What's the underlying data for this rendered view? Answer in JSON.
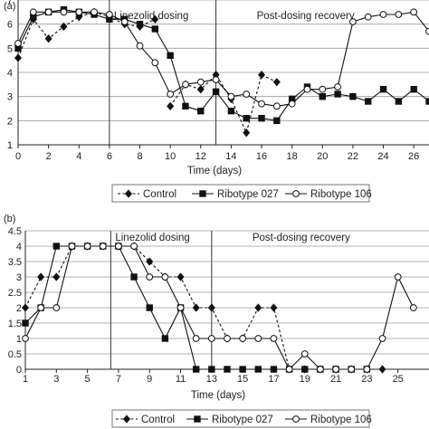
{
  "figure": {
    "panels": [
      "(a)",
      "(b)"
    ]
  },
  "chart_data": [
    {
      "type": "line",
      "panel_label": "",
      "xlabel": "Time (days)",
      "ylabel": "",
      "xlim": [
        0,
        27
      ],
      "ylim": [
        1,
        7
      ],
      "xticks": [
        0,
        2,
        4,
        6,
        8,
        10,
        12,
        14,
        16,
        18,
        20,
        22,
        24,
        26
      ],
      "yticks": [
        1,
        2,
        3,
        4,
        5,
        6,
        7
      ],
      "grid": "horizontal",
      "phase_lines": [
        6,
        13
      ],
      "phase_labels": [
        "Linezolid dosing",
        "Post-dosing recovery"
      ],
      "legend": {
        "position": "bottom",
        "entries": [
          "Control",
          "Ribotype 027",
          "Ribotype 106"
        ]
      },
      "series": [
        {
          "name": "Control",
          "style": "dashed",
          "marker": "diamond",
          "x": [
            0,
            1,
            2,
            3,
            4,
            5,
            6,
            7,
            8,
            9
          ],
          "y": [
            4.6,
            6.2,
            5.4,
            5.9,
            6.3,
            6.5,
            6.3,
            6.0,
            5.9,
            6.2
          ]
        },
        {
          "name": "Control",
          "style": "dashed",
          "marker": "diamond",
          "x": [
            10,
            11,
            12,
            13,
            14,
            15,
            16,
            17
          ],
          "y": [
            2.6,
            3.5,
            3.3,
            3.9,
            2.9,
            1.5,
            3.9,
            3.6
          ]
        },
        {
          "name": "Ribotype 027",
          "style": "solid",
          "marker": "square",
          "x": [
            0,
            1,
            2,
            3,
            4,
            5,
            6,
            7,
            8,
            9,
            10,
            11,
            12,
            13,
            14,
            15,
            16,
            17,
            18,
            19,
            20,
            21,
            22,
            23,
            24,
            25,
            26,
            27
          ],
          "y": [
            5.0,
            6.3,
            6.5,
            6.6,
            6.5,
            6.4,
            6.2,
            6.2,
            6.0,
            5.8,
            4.7,
            2.6,
            2.4,
            3.2,
            2.4,
            2.1,
            2.1,
            2.0,
            2.9,
            3.4,
            3.0,
            3.1,
            3.0,
            2.8,
            3.3,
            2.8,
            3.3,
            2.8
          ]
        },
        {
          "name": "Ribotype 106",
          "style": "solid",
          "marker": "circle",
          "x": [
            0,
            1,
            2,
            3,
            4,
            5,
            6,
            7,
            8,
            9,
            10,
            11,
            12,
            13,
            14,
            15,
            16,
            17,
            18,
            19,
            20,
            21,
            22,
            23,
            24,
            25,
            26,
            27
          ],
          "y": [
            5.2,
            6.5,
            6.5,
            6.5,
            6.5,
            6.5,
            6.4,
            6.1,
            5.1,
            4.4,
            3.1,
            3.5,
            3.6,
            3.7,
            3.0,
            3.1,
            2.7,
            2.6,
            2.7,
            3.3,
            3.3,
            3.4,
            6.1,
            6.3,
            6.4,
            6.4,
            6.5,
            5.7
          ]
        }
      ]
    },
    {
      "type": "line",
      "panel_label": "",
      "xlabel": "Time (days)",
      "ylabel": "Log10 cfu",
      "xlim": [
        1,
        27
      ],
      "ylim": [
        0,
        4.5
      ],
      "xticks": [
        1,
        3,
        5,
        7,
        9,
        11,
        13,
        15,
        17,
        19,
        21,
        23,
        25
      ],
      "yticks": [
        "0",
        "0.5",
        "1",
        "1.5",
        "2",
        "2.5",
        "3",
        "3.5",
        "4",
        "4.5"
      ],
      "grid": "horizontal",
      "phase_lines": [
        6.5,
        13
      ],
      "phase_labels": [
        "Linezolid dosing",
        "Post-dosing recovery"
      ],
      "legend": {
        "position": "bottom",
        "entries": [
          "Control",
          "Ribotype 027",
          "Ribotype 106"
        ]
      },
      "series": [
        {
          "name": "Control",
          "style": "dashed",
          "marker": "diamond",
          "x": [
            1,
            2,
            3,
            4,
            5,
            6,
            7,
            8,
            9,
            10,
            11,
            12,
            13,
            14,
            15,
            16,
            17,
            18,
            19,
            20,
            21,
            22,
            23,
            24
          ],
          "y": [
            2.0,
            3.0,
            3.0,
            4.0,
            4.0,
            4.0,
            4.0,
            4.0,
            3.5,
            3.0,
            3.0,
            2.0,
            2.0,
            1.0,
            1.0,
            2.0,
            2.0,
            0.0,
            0.0,
            0.0,
            0.0,
            0.0,
            0.0,
            0.0
          ]
        },
        {
          "name": "Ribotype 027",
          "style": "solid",
          "marker": "square",
          "x": [
            1,
            2,
            3,
            4,
            5,
            6,
            7,
            8,
            9,
            10,
            11,
            12,
            13,
            14,
            15,
            16,
            17,
            18,
            19,
            20,
            21,
            22,
            23
          ],
          "y": [
            1.5,
            2.0,
            4.0,
            4.0,
            4.0,
            4.0,
            4.0,
            3.0,
            2.0,
            1.0,
            2.0,
            0.0,
            0.0,
            0.0,
            0.0,
            0.0,
            0.0,
            0.0,
            0.0,
            0.0,
            0.0,
            0.0,
            0.0
          ]
        },
        {
          "name": "Ribotype 106",
          "style": "solid",
          "marker": "circle",
          "x": [
            1,
            2,
            3,
            4,
            5,
            6,
            7,
            8,
            9,
            10,
            11,
            12,
            13,
            14,
            15,
            16,
            17,
            18,
            19,
            20,
            21,
            22,
            23,
            24,
            25,
            26
          ],
          "y": [
            1.0,
            2.0,
            2.0,
            4.0,
            4.0,
            4.0,
            4.0,
            4.0,
            3.0,
            3.0,
            2.0,
            1.0,
            1.0,
            1.0,
            1.0,
            1.0,
            1.0,
            0.0,
            0.5,
            0.0,
            0.0,
            0.0,
            0.0,
            1.0,
            3.0,
            2.0
          ]
        }
      ]
    }
  ]
}
